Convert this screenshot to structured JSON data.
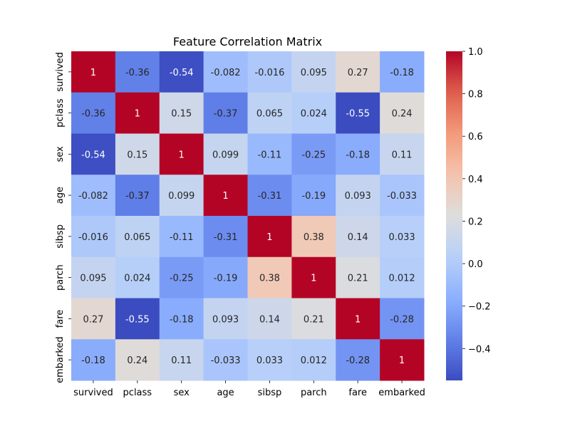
{
  "chart_data": {
    "type": "heatmap",
    "title": "Feature Correlation Matrix",
    "x_labels": [
      "survived",
      "pclass",
      "sex",
      "age",
      "sibsp",
      "parch",
      "fare",
      "embarked"
    ],
    "y_labels": [
      "survived",
      "pclass",
      "sex",
      "age",
      "sibsp",
      "parch",
      "fare",
      "embarked"
    ],
    "values": [
      [
        1,
        -0.36,
        -0.54,
        -0.082,
        -0.016,
        0.095,
        0.27,
        -0.18
      ],
      [
        -0.36,
        1,
        0.15,
        -0.37,
        0.065,
        0.024,
        -0.55,
        0.24
      ],
      [
        -0.54,
        0.15,
        1,
        0.099,
        -0.11,
        -0.25,
        -0.18,
        0.11
      ],
      [
        -0.082,
        -0.37,
        0.099,
        1,
        -0.31,
        -0.19,
        0.093,
        -0.033
      ],
      [
        -0.016,
        0.065,
        -0.11,
        -0.31,
        1,
        0.38,
        0.14,
        0.033
      ],
      [
        0.095,
        0.024,
        -0.25,
        -0.19,
        0.38,
        1,
        0.21,
        0.012
      ],
      [
        0.27,
        -0.55,
        -0.18,
        0.093,
        0.14,
        0.21,
        1,
        -0.28
      ],
      [
        -0.18,
        0.24,
        0.11,
        -0.033,
        0.033,
        0.012,
        -0.28,
        1
      ]
    ],
    "colormap": "coolwarm",
    "annotated": true,
    "colorbar": {
      "range": [
        -0.55,
        1.0
      ],
      "ticks": [
        -0.4,
        -0.2,
        0.0,
        0.2,
        0.4,
        0.6,
        0.8,
        1.0
      ],
      "tick_labels": [
        "−0.4",
        "−0.2",
        "0.0",
        "0.2",
        "0.4",
        "0.6",
        "0.8",
        "1.0"
      ],
      "placement": "right"
    }
  }
}
